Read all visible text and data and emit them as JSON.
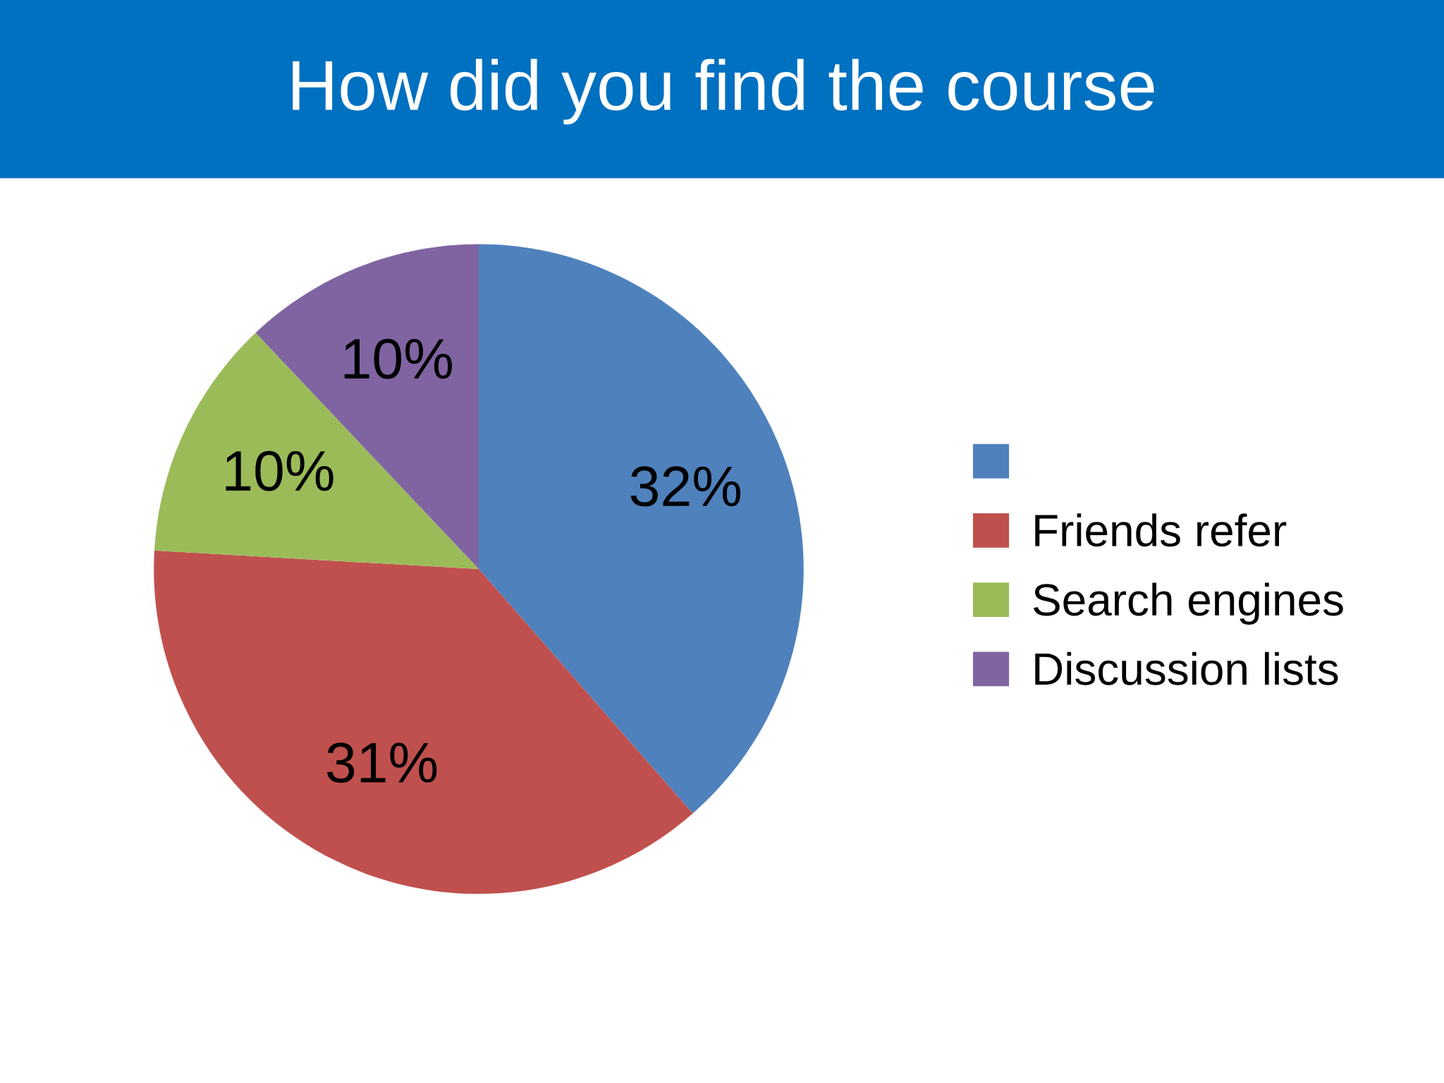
{
  "chart_data": {
    "type": "pie",
    "title": "How did you find the course",
    "categories": [
      null,
      "Friends refer",
      "Search engines",
      "Discussion lists"
    ],
    "values": [
      32,
      31,
      10,
      10
    ],
    "colors": [
      "#4f81bd",
      "#c0504d",
      "#9bbb59",
      "#8064a2"
    ],
    "value_labels": [
      "32%",
      "31%",
      "10%",
      "10%"
    ],
    "legend": "right"
  }
}
